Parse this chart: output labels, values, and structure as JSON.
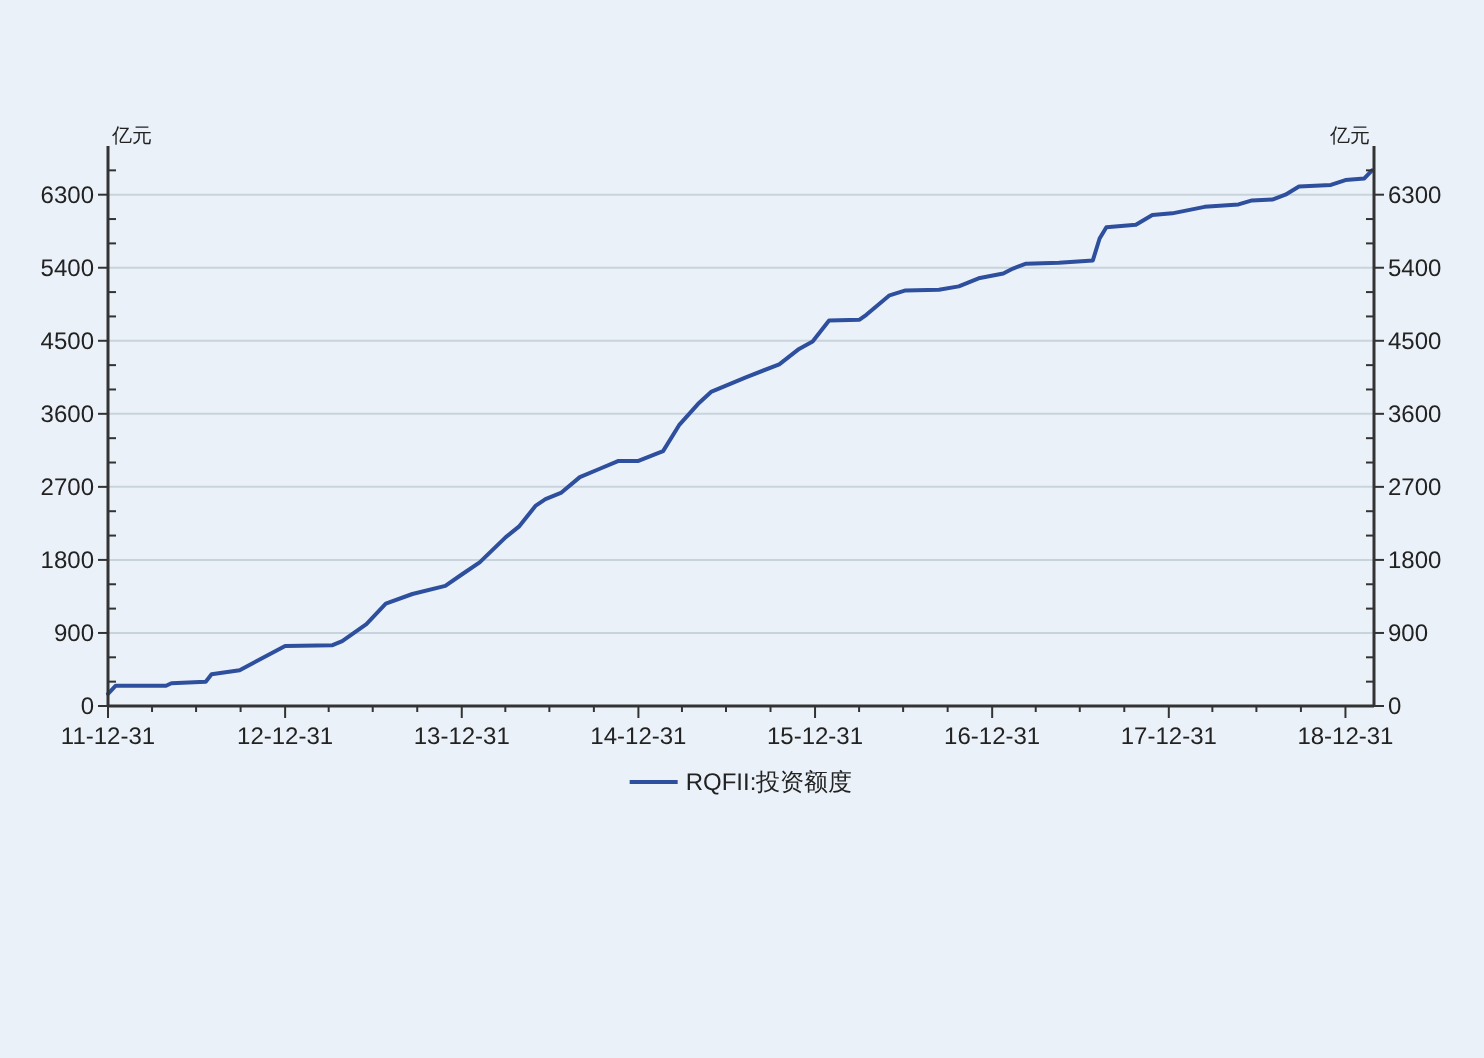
{
  "chart_data": {
    "type": "line",
    "ylabel": "亿元",
    "y2label": "亿元",
    "legend": "bottom",
    "grid": "y",
    "xlim": [
      "2011-12-31",
      "2019-02-28"
    ],
    "xticks": [
      {
        "value": "2011-12-31",
        "label": "11-12-31"
      },
      {
        "value": "2012-03-31",
        "label": null
      },
      {
        "value": "2012-06-30",
        "label": null
      },
      {
        "value": "2012-09-30",
        "label": null
      },
      {
        "value": "2012-12-31",
        "label": "12-12-31"
      },
      {
        "value": "2013-03-31",
        "label": null
      },
      {
        "value": "2013-06-30",
        "label": null
      },
      {
        "value": "2013-09-30",
        "label": null
      },
      {
        "value": "2013-12-31",
        "label": "13-12-31"
      },
      {
        "value": "2014-03-31",
        "label": null
      },
      {
        "value": "2014-06-30",
        "label": null
      },
      {
        "value": "2014-09-30",
        "label": null
      },
      {
        "value": "2014-12-31",
        "label": "14-12-31"
      },
      {
        "value": "2015-03-31",
        "label": null
      },
      {
        "value": "2015-06-30",
        "label": null
      },
      {
        "value": "2015-09-30",
        "label": null
      },
      {
        "value": "2015-12-31",
        "label": "15-12-31"
      },
      {
        "value": "2016-03-31",
        "label": null
      },
      {
        "value": "2016-06-30",
        "label": null
      },
      {
        "value": "2016-09-30",
        "label": null
      },
      {
        "value": "2016-12-31",
        "label": "16-12-31"
      },
      {
        "value": "2017-03-31",
        "label": null
      },
      {
        "value": "2017-06-30",
        "label": null
      },
      {
        "value": "2017-09-30",
        "label": null
      },
      {
        "value": "2017-12-31",
        "label": "17-12-31"
      },
      {
        "value": "2018-03-31",
        "label": null
      },
      {
        "value": "2018-06-30",
        "label": null
      },
      {
        "value": "2018-09-30",
        "label": null
      },
      {
        "value": "2018-12-31",
        "label": "18-12-31"
      }
    ],
    "ylim": [
      0,
      6900
    ],
    "yticks": [
      0,
      {
        "value": 300,
        "label": null
      },
      {
        "value": 600,
        "label": null
      },
      900,
      {
        "value": 1200,
        "label": null
      },
      {
        "value": 1500,
        "label": null
      },
      1800,
      {
        "value": 2100,
        "label": null
      },
      {
        "value": 2400,
        "label": null
      },
      2700,
      {
        "value": 3000,
        "label": null
      },
      {
        "value": 3300,
        "label": null
      },
      3600,
      {
        "value": 3900,
        "label": null
      },
      {
        "value": 4200,
        "label": null
      },
      4500,
      {
        "value": 4800,
        "label": null
      },
      {
        "value": 5100,
        "label": null
      },
      5400,
      {
        "value": 5700,
        "label": null
      },
      {
        "value": 6000,
        "label": null
      },
      6300,
      {
        "value": 6600,
        "label": null
      }
    ],
    "y2lim": [
      0,
      6900
    ],
    "y2ticks": [
      0,
      {
        "value": 300,
        "label": null
      },
      {
        "value": 600,
        "label": null
      },
      900,
      {
        "value": 1200,
        "label": null
      },
      {
        "value": 1500,
        "label": null
      },
      1800,
      {
        "value": 2100,
        "label": null
      },
      {
        "value": 2400,
        "label": null
      },
      2700,
      {
        "value": 3000,
        "label": null
      },
      {
        "value": 3300,
        "label": null
      },
      3600,
      {
        "value": 3900,
        "label": null
      },
      {
        "value": 4200,
        "label": null
      },
      4500,
      {
        "value": 4800,
        "label": null
      },
      {
        "value": 5100,
        "label": null
      },
      5400,
      {
        "value": 5700,
        "label": null
      },
      {
        "value": 6000,
        "label": null
      },
      6300,
      {
        "value": 6600,
        "label": null
      }
    ],
    "series": [
      {
        "name": "RQFII:投资额度",
        "color": "#2e4f9e",
        "x": [
          "2011-12-31",
          "2012-01-16",
          "2012-04-29",
          "2012-05-10",
          "2012-07-20",
          "2012-08-01",
          "2012-09-28",
          "2012-12-31",
          "2013-04-08",
          "2013-04-28",
          "2013-06-17",
          "2013-07-27",
          "2013-09-20",
          "2013-11-27",
          "2013-12-31",
          "2014-02-06",
          "2014-04-01",
          "2014-04-28",
          "2014-06-02",
          "2014-06-22",
          "2014-07-25",
          "2014-09-01",
          "2014-10-11",
          "2014-11-20",
          "2014-12-31",
          "2015-02-20",
          "2015-03-25",
          "2015-05-03",
          "2015-05-30",
          "2015-08-10",
          "2015-10-18",
          "2015-11-28",
          "2015-12-26",
          "2016-01-29",
          "2016-04-01",
          "2016-04-15",
          "2016-06-02",
          "2016-07-05",
          "2016-09-12",
          "2016-10-23",
          "2016-12-03",
          "2017-01-23",
          "2017-02-12",
          "2017-03-11",
          "2017-05-18",
          "2017-07-27",
          "2017-08-10",
          "2017-08-24",
          "2017-10-24",
          "2017-11-27",
          "2018-01-07",
          "2018-03-15",
          "2018-05-24",
          "2018-06-21",
          "2018-08-02",
          "2018-08-29",
          "2018-09-26",
          "2018-12-01",
          "2018-12-31",
          "2019-02-08",
          "2019-02-24"
        ],
        "values": [
          150,
          250,
          250,
          280,
          300,
          390,
          440,
          740,
          750,
          800,
          1010,
          1260,
          1380,
          1480,
          1620,
          1770,
          2080,
          2210,
          2470,
          2550,
          2630,
          2820,
          2920,
          3020,
          3020,
          3140,
          3460,
          3720,
          3870,
          4050,
          4210,
          4400,
          4490,
          4750,
          4760,
          4820,
          5060,
          5120,
          5130,
          5170,
          5270,
          5330,
          5390,
          5450,
          5460,
          5490,
          5760,
          5900,
          5930,
          6050,
          6070,
          6150,
          6180,
          6230,
          6240,
          6300,
          6400,
          6420,
          6480,
          6500,
          6600
        ]
      }
    ]
  }
}
